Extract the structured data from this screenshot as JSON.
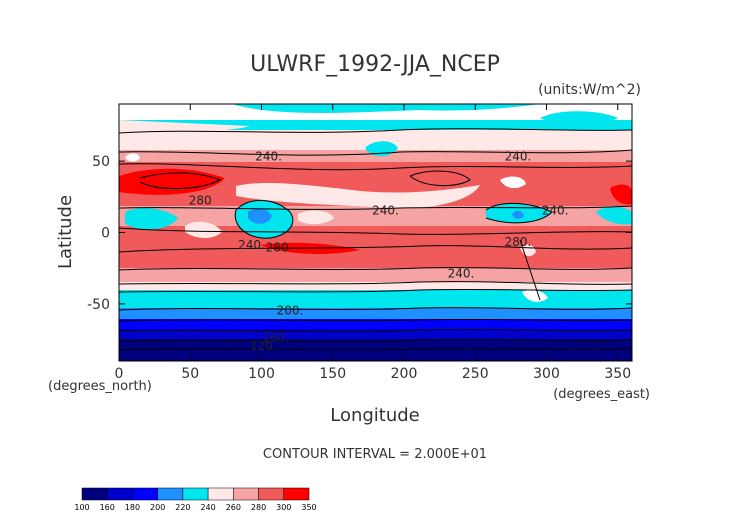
{
  "chart_data": {
    "type": "heatmap",
    "title": "ULWRF_1992-JJA_NCEP",
    "units_label": "(units:W/m^2)",
    "xlabel": "Longitude",
    "ylabel": "Latitude",
    "x_unit_label": "(degrees_east)",
    "y_unit_label": "(degrees_north)",
    "xlim": [
      0,
      360
    ],
    "ylim": [
      -90,
      90
    ],
    "x_ticks": [
      0,
      50,
      100,
      150,
      200,
      250,
      300,
      350
    ],
    "y_ticks": [
      -50,
      0,
      50
    ],
    "footer": "CONTOUR INTERVAL = 2.000E+01",
    "colorbar": {
      "levels": [
        "100",
        "160",
        "180",
        "200",
        "220",
        "240",
        "260",
        "280",
        "300",
        "350"
      ],
      "colors": [
        "#00007f",
        "#0000cc",
        "#0000ff",
        "#1e90ff",
        "#00e5ee",
        "#ffe8e8",
        "#f5a3a3",
        "#f05a5a",
        "#ff0000"
      ]
    },
    "contour_labels": [
      {
        "text": "240.",
        "lon": 105,
        "lat": 52
      },
      {
        "text": "240.",
        "lon": 280,
        "lat": 52
      },
      {
        "text": "280",
        "lon": 57,
        "lat": 21
      },
      {
        "text": "240.",
        "lon": 187,
        "lat": 14
      },
      {
        "text": "240.",
        "lon": 306,
        "lat": 14
      },
      {
        "text": "240.",
        "lon": 93,
        "lat": -10
      },
      {
        "text": "280",
        "lon": 111,
        "lat": -12
      },
      {
        "text": "280.",
        "lon": 280,
        "lat": -8
      },
      {
        "text": "240.",
        "lon": 240,
        "lat": -30
      },
      {
        "text": "200.",
        "lon": 120,
        "lat": -56
      },
      {
        "text": "160.",
        "lon": 110,
        "lat": -75
      },
      {
        "text": "120",
        "lon": 100,
        "lat": -81
      }
    ],
    "zonal_bands": [
      {
        "lat": [
          78,
          90
        ],
        "level": "white"
      },
      {
        "lat": [
          68,
          78
        ],
        "level": "220-240"
      },
      {
        "lat": [
          55,
          68
        ],
        "level": "240-260"
      },
      {
        "lat": [
          45,
          55
        ],
        "level": "260-280"
      },
      {
        "lat": [
          12,
          45
        ],
        "level": "280-300"
      },
      {
        "lat": [
          -2,
          12
        ],
        "level": "mixed convective minima 200-260"
      },
      {
        "lat": [
          -30,
          -2
        ],
        "level": "260-280"
      },
      {
        "lat": [
          -40,
          -30
        ],
        "level": "240-260"
      },
      {
        "lat": [
          -45,
          -40
        ],
        "level": "220-240"
      },
      {
        "lat": [
          -60,
          -45
        ],
        "level": "200-220"
      },
      {
        "lat": [
          -66,
          -60
        ],
        "level": "180-200"
      },
      {
        "lat": [
          -73,
          -66
        ],
        "level": "160-180"
      },
      {
        "lat": [
          -90,
          -73
        ],
        "level": "100-160"
      }
    ]
  }
}
